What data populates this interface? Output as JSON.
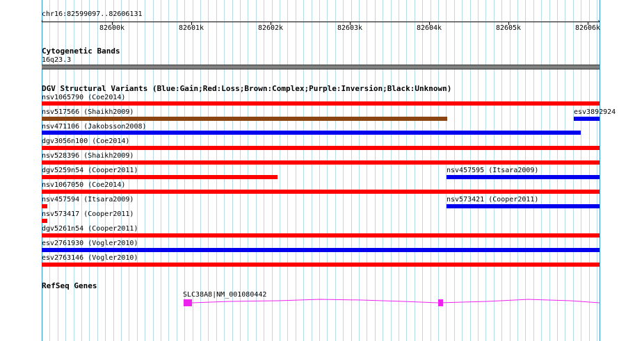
{
  "ruler": {
    "label": "chr16:82599097..82606131",
    "ticks": [
      "82600k",
      "82601k",
      "82602k",
      "82603k",
      "82604k",
      "82605k",
      "82606k"
    ]
  },
  "cytogenetic": {
    "title": "Cytogenetic Bands",
    "band_label": "16q23.3"
  },
  "dgv": {
    "title": "DGV Structural Variants (Blue:Gain;Red:Loss;Brown:Complex;Purple:Inversion;Black:Unknown)",
    "colors": {
      "gain": "#0000ee",
      "loss": "#ff0000",
      "complex": "#8b4513"
    },
    "variants": [
      {
        "label": "nsv1065790 (Coe2014)",
        "type": "loss"
      },
      {
        "label": "nsv517566 (Shaikh2009)",
        "type": "complex"
      },
      {
        "label": "esv3892924",
        "type": "gain"
      },
      {
        "label": "nsv471106 (Jakobsson2008)",
        "type": "gain"
      },
      {
        "label": "dgv3056n100 (Coe2014)",
        "type": "loss"
      },
      {
        "label": "nsv528396 (Shaikh2009)",
        "type": "loss"
      },
      {
        "label": "dgv5259n54 (Cooper2011)",
        "type": "loss"
      },
      {
        "label": "nsv457595 (Itsara2009)",
        "type": "gain"
      },
      {
        "label": "nsv1067050 (Coe2014)",
        "type": "loss"
      },
      {
        "label": "nsv457594 (Itsara2009)",
        "type": "loss"
      },
      {
        "label": "nsv573421 (Cooper2011)",
        "type": "gain"
      },
      {
        "label": "nsv573417 (Cooper2011)",
        "type": "loss"
      },
      {
        "label": "dgv5261n54 (Cooper2011)",
        "type": "loss"
      },
      {
        "label": "esv2761930 (Vogler2010)",
        "type": "gain"
      },
      {
        "label": "esv2763146 (Vogler2010)",
        "type": "loss"
      }
    ]
  },
  "refseq": {
    "title": "RefSeq Genes",
    "gene_label": "SLC38A8|NM_001080442",
    "color": "#ee22ee"
  }
}
